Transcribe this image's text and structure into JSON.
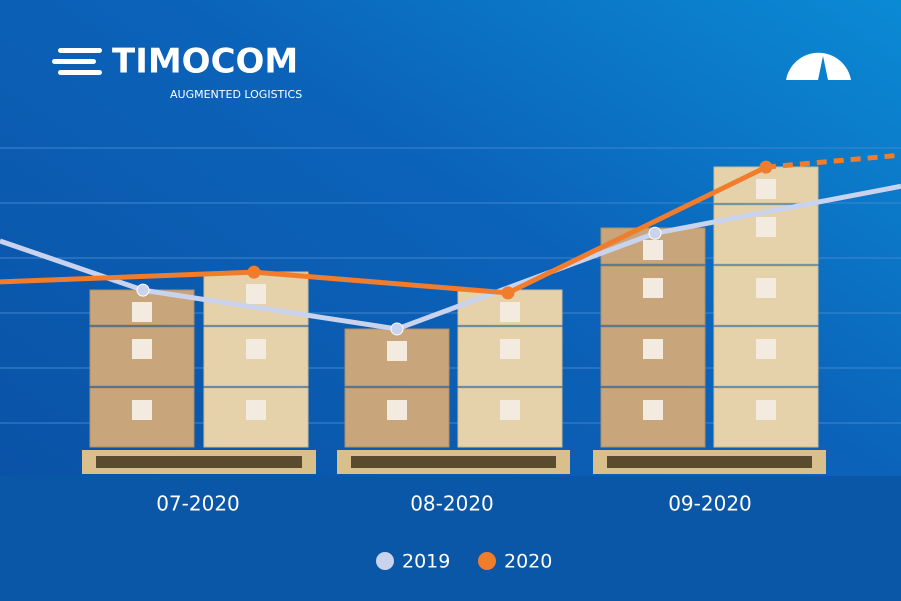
{
  "brand": {
    "name": "TIMOCOM",
    "tagline": "AUGMENTED LOGISTICS"
  },
  "chart_data": {
    "type": "line",
    "categories": [
      null,
      "07-2020",
      "08-2020",
      "09-2020",
      null
    ],
    "ylim": [
      0,
      6
    ],
    "series": [
      {
        "name": "2019",
        "color": "#c9d3ee",
        "values": [
          4.3,
          3.4,
          2.69,
          4.44,
          5.3
        ]
      },
      {
        "name": "2020",
        "color": "#f07c2c",
        "values": [
          3.55,
          3.73,
          3.35,
          5.65,
          5.87
        ],
        "dash_last_segment": true
      }
    ]
  }
}
